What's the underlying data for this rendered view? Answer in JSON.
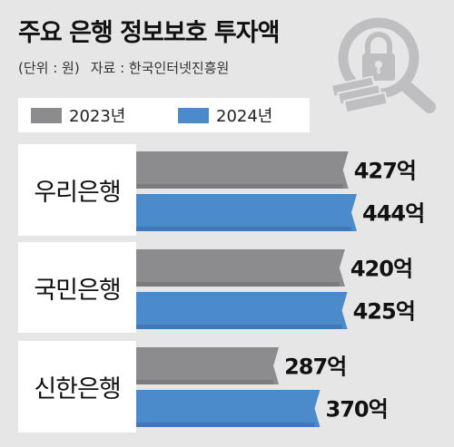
{
  "title": "주요 은행 정보보호 투자액",
  "unit_note": "(단위 : 원)",
  "source_note": "자료 : 한국인터넷진흥원",
  "icon": "lock-magnifier-icon",
  "colors": {
    "2023": "#8c8c8e",
    "2024": "#4b8acb",
    "background": "#e6e6e7"
  },
  "chart_data": {
    "type": "bar",
    "orientation": "horizontal",
    "unit_suffix": "억",
    "categories": [
      "우리은행",
      "국민은행",
      "신한은행"
    ],
    "series": [
      {
        "name": "2023년",
        "values": [
          427,
          420,
          287
        ]
      },
      {
        "name": "2024년",
        "values": [
          444,
          425,
          370
        ]
      }
    ],
    "data_labels": [
      [
        "427억",
        "444억"
      ],
      [
        "420억",
        "425억"
      ],
      [
        "287억",
        "370억"
      ]
    ],
    "legend": "top-left",
    "grid": false
  }
}
